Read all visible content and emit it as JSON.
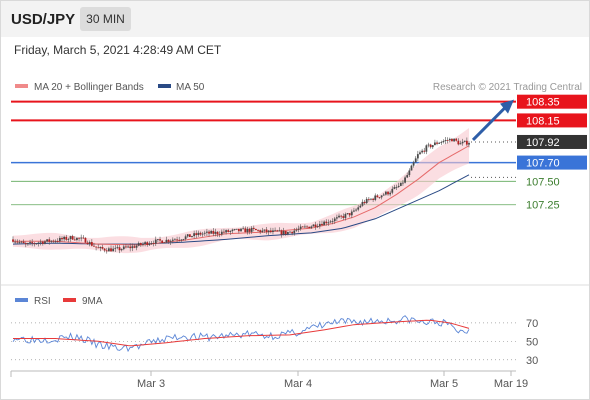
{
  "header": {
    "symbol": "USD/JPY",
    "interval": "30 MIN"
  },
  "timestamp": "Friday, March 5, 2021 4:28:49 AM CET",
  "copyright": "Research © 2021 Trading Central",
  "colors": {
    "resistance": "#e8141c",
    "support_blue": "#3a74d8",
    "support_green": "#5fa85a",
    "current": "#333333",
    "arrow": "#2e5ea8",
    "bands": "#f8c8cf",
    "ma50": "#2a4a85",
    "rsi": "#5b86d6",
    "rsi_ma": "#e83a3a"
  },
  "chart_data": [
    {
      "type": "line",
      "legend": [
        "MA 20 + Bollinger Bands",
        "MA 50"
      ],
      "x_ticks": [
        "Mar 3",
        "Mar 4",
        "Mar 5",
        "Mar 19"
      ],
      "ylim": [
        106.5,
        108.4
      ],
      "levels": [
        {
          "label": "108.35",
          "value": 108.35,
          "kind": "resistance"
        },
        {
          "label": "108.15",
          "value": 108.15,
          "kind": "resistance"
        },
        {
          "label": "107.92",
          "value": 107.92,
          "kind": "current"
        },
        {
          "label": "107.70",
          "value": 107.7,
          "kind": "support"
        },
        {
          "label": "107.50",
          "value": 107.5,
          "kind": "support-green"
        },
        {
          "label": "107.25",
          "value": 107.25,
          "kind": "support-green"
        }
      ],
      "price_keypoints": [
        [
          0,
          106.88
        ],
        [
          6,
          106.82
        ],
        [
          12,
          106.85
        ],
        [
          20,
          106.87
        ],
        [
          28,
          106.9
        ],
        [
          34,
          106.87
        ],
        [
          40,
          106.78
        ],
        [
          48,
          106.77
        ],
        [
          56,
          106.8
        ],
        [
          64,
          106.85
        ],
        [
          72,
          106.87
        ],
        [
          80,
          106.9
        ],
        [
          88,
          106.94
        ],
        [
          96,
          106.95
        ],
        [
          104,
          106.97
        ],
        [
          112,
          106.98
        ],
        [
          120,
          106.96
        ],
        [
          128,
          106.95
        ],
        [
          136,
          107.0
        ],
        [
          144,
          107.05
        ],
        [
          152,
          107.1
        ],
        [
          160,
          107.17
        ],
        [
          164,
          107.27
        ],
        [
          170,
          107.33
        ],
        [
          176,
          107.38
        ],
        [
          182,
          107.46
        ],
        [
          186,
          107.6
        ],
        [
          190,
          107.78
        ],
        [
          194,
          107.86
        ],
        [
          200,
          107.92
        ],
        [
          206,
          107.95
        ],
        [
          210,
          107.9
        ],
        [
          214,
          107.92
        ]
      ],
      "ma20_keypoints": [
        [
          0,
          106.86
        ],
        [
          20,
          106.86
        ],
        [
          40,
          106.83
        ],
        [
          60,
          106.82
        ],
        [
          80,
          106.87
        ],
        [
          100,
          106.94
        ],
        [
          120,
          106.96
        ],
        [
          140,
          107.0
        ],
        [
          150,
          107.05
        ],
        [
          160,
          107.12
        ],
        [
          170,
          107.22
        ],
        [
          180,
          107.36
        ],
        [
          190,
          107.52
        ],
        [
          200,
          107.7
        ],
        [
          214,
          107.88
        ]
      ],
      "ma50_keypoints": [
        [
          0,
          106.83
        ],
        [
          20,
          106.84
        ],
        [
          40,
          106.83
        ],
        [
          60,
          106.83
        ],
        [
          80,
          106.85
        ],
        [
          100,
          106.88
        ],
        [
          120,
          106.92
        ],
        [
          140,
          106.95
        ],
        [
          155,
          107.0
        ],
        [
          170,
          107.1
        ],
        [
          185,
          107.25
        ],
        [
          200,
          107.4
        ],
        [
          214,
          107.57
        ]
      ]
    },
    {
      "type": "line",
      "legend": [
        "RSI",
        "9MA"
      ],
      "ylim": [
        20,
        85
      ],
      "y_ticks": [
        70,
        50,
        30
      ],
      "rsi_keypoints": [
        [
          0,
          54
        ],
        [
          10,
          52
        ],
        [
          20,
          53
        ],
        [
          30,
          55
        ],
        [
          40,
          46
        ],
        [
          50,
          42
        ],
        [
          60,
          45
        ],
        [
          70,
          52
        ],
        [
          80,
          56
        ],
        [
          90,
          54
        ],
        [
          100,
          56
        ],
        [
          110,
          58
        ],
        [
          120,
          56
        ],
        [
          130,
          58
        ],
        [
          140,
          64
        ],
        [
          150,
          70
        ],
        [
          160,
          71
        ],
        [
          170,
          72
        ],
        [
          180,
          73
        ],
        [
          186,
          74
        ],
        [
          192,
          70
        ],
        [
          200,
          71
        ],
        [
          206,
          66
        ],
        [
          210,
          60
        ],
        [
          214,
          62
        ]
      ],
      "ma_keypoints": [
        [
          0,
          53
        ],
        [
          20,
          53
        ],
        [
          40,
          50
        ],
        [
          55,
          45
        ],
        [
          70,
          48
        ],
        [
          90,
          53
        ],
        [
          110,
          56
        ],
        [
          130,
          57
        ],
        [
          145,
          62
        ],
        [
          160,
          68
        ],
        [
          180,
          71
        ],
        [
          195,
          73
        ],
        [
          205,
          70
        ],
        [
          214,
          64
        ]
      ]
    }
  ]
}
